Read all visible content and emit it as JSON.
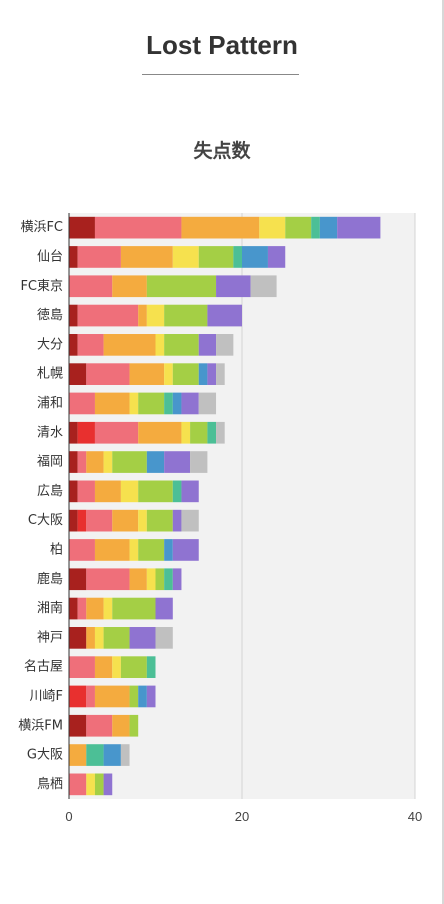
{
  "title": "Lost Pattern",
  "subtitle": "失点数",
  "chart_data": {
    "type": "bar",
    "orientation": "horizontal",
    "stacked": true,
    "title": "失点数",
    "categories": [
      "横浜FC",
      "仙台",
      "FC東京",
      "徳島",
      "大分",
      "札幌",
      "浦和",
      "清水",
      "福岡",
      "広島",
      "C大阪",
      "柏",
      "鹿島",
      "湘南",
      "神戸",
      "名古屋",
      "川崎F",
      "横浜FM",
      "G大阪",
      "鳥栖"
    ],
    "series": [
      {
        "color": "#a8211e",
        "values": [
          3,
          1,
          0,
          1,
          1,
          2,
          0,
          1,
          1,
          1,
          1,
          0,
          2,
          1,
          2,
          0,
          0,
          2,
          0,
          0
        ]
      },
      {
        "color": "#e8302f",
        "values": [
          0,
          0,
          0,
          0,
          0,
          0,
          0,
          2,
          0,
          0,
          1,
          0,
          0,
          0,
          0,
          0,
          2,
          0,
          0,
          0
        ]
      },
      {
        "color": "#ef6f7a",
        "values": [
          10,
          5,
          5,
          7,
          3,
          5,
          3,
          5,
          1,
          2,
          3,
          3,
          5,
          1,
          0,
          3,
          1,
          3,
          0,
          2
        ]
      },
      {
        "color": "#f4ab3f",
        "values": [
          9,
          6,
          4,
          1,
          6,
          4,
          4,
          5,
          2,
          3,
          3,
          4,
          2,
          2,
          1,
          2,
          4,
          2,
          2,
          0
        ]
      },
      {
        "color": "#f6e14e",
        "values": [
          3,
          3,
          0,
          2,
          1,
          1,
          1,
          1,
          1,
          2,
          1,
          1,
          1,
          1,
          1,
          1,
          0,
          0,
          0,
          1
        ]
      },
      {
        "color": "#a4cf45",
        "values": [
          3,
          4,
          8,
          5,
          4,
          3,
          3,
          2,
          4,
          4,
          3,
          3,
          1,
          5,
          3,
          3,
          1,
          1,
          0,
          1
        ]
      },
      {
        "color": "#4cbf96",
        "values": [
          1,
          1,
          0,
          0,
          0,
          0,
          1,
          1,
          0,
          1,
          0,
          0,
          1,
          0,
          0,
          1,
          0,
          0,
          2,
          0
        ]
      },
      {
        "color": "#4896cc",
        "values": [
          2,
          3,
          0,
          0,
          0,
          1,
          1,
          0,
          2,
          0,
          0,
          1,
          0,
          0,
          0,
          0,
          1,
          0,
          2,
          0
        ]
      },
      {
        "color": "#8f73d1",
        "values": [
          5,
          2,
          4,
          4,
          2,
          1,
          2,
          0,
          3,
          2,
          1,
          3,
          1,
          2,
          3,
          0,
          1,
          0,
          0,
          1
        ]
      },
      {
        "color": "#c0c0c0",
        "values": [
          0,
          0,
          3,
          0,
          2,
          1,
          2,
          1,
          2,
          0,
          2,
          0,
          0,
          0,
          2,
          0,
          0,
          0,
          1,
          0
        ]
      }
    ],
    "xlim": [
      0,
      40
    ],
    "xticks": [
      0,
      20,
      40
    ],
    "grid": true
  }
}
